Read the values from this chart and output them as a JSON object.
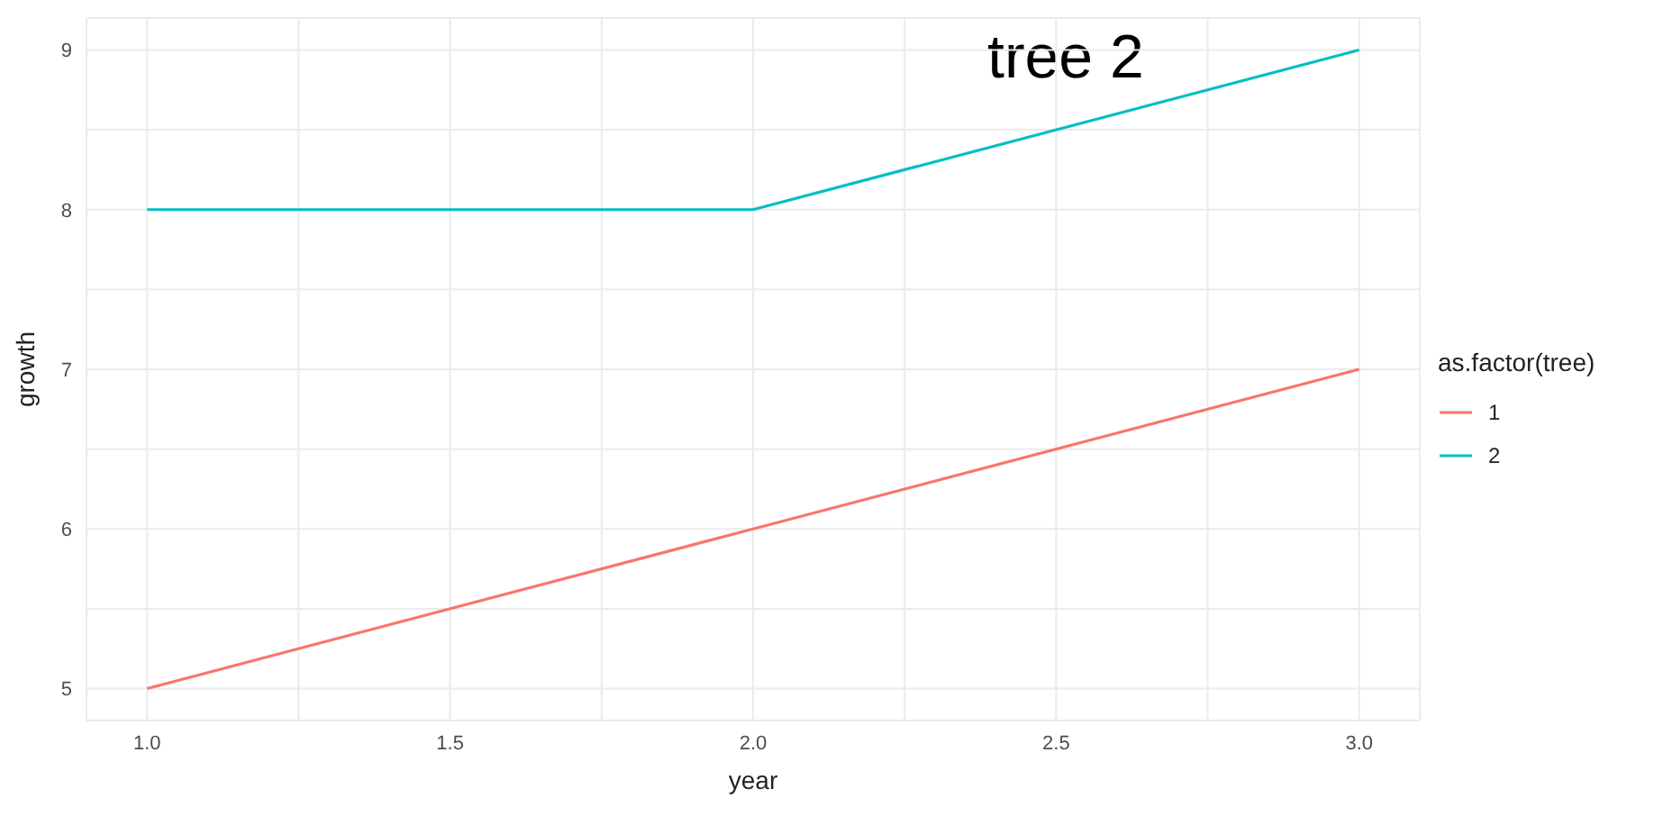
{
  "chart_data": {
    "type": "line",
    "xlabel": "year",
    "ylabel": "growth",
    "legend_title": "as.factor(tree)",
    "annotations": [
      "tree 2"
    ],
    "series": [
      {
        "name": "1",
        "color": "#f8766d",
        "x": [
          1,
          2,
          3
        ],
        "values": [
          5,
          6,
          7
        ]
      },
      {
        "name": "2",
        "color": "#00bfc4",
        "x": [
          1,
          2,
          3
        ],
        "values": [
          8,
          8,
          9
        ]
      }
    ],
    "xlim": [
      0.9,
      3.1
    ],
    "xticks": [
      {
        "value": 1,
        "label": "1.0"
      },
      {
        "value": 1.25,
        "label": null
      },
      {
        "value": 1.5,
        "label": "1.5"
      },
      {
        "value": 1.75,
        "label": null
      },
      {
        "value": 2,
        "label": "2.0"
      },
      {
        "value": 2.25,
        "label": null
      },
      {
        "value": 2.5,
        "label": "2.5"
      },
      {
        "value": 2.75,
        "label": null
      },
      {
        "value": 3,
        "label": "3.0"
      }
    ],
    "ylim": [
      4.8,
      9.2
    ],
    "yticks": [
      5,
      {
        "value": 5.5,
        "label": null
      },
      6,
      {
        "value": 6.5,
        "label": null
      },
      7,
      {
        "value": 7.5,
        "label": null
      },
      8,
      {
        "value": 8.5,
        "label": null
      },
      9
    ],
    "grid": true,
    "legend": "right",
    "line_style": "solid",
    "marker": "none"
  }
}
